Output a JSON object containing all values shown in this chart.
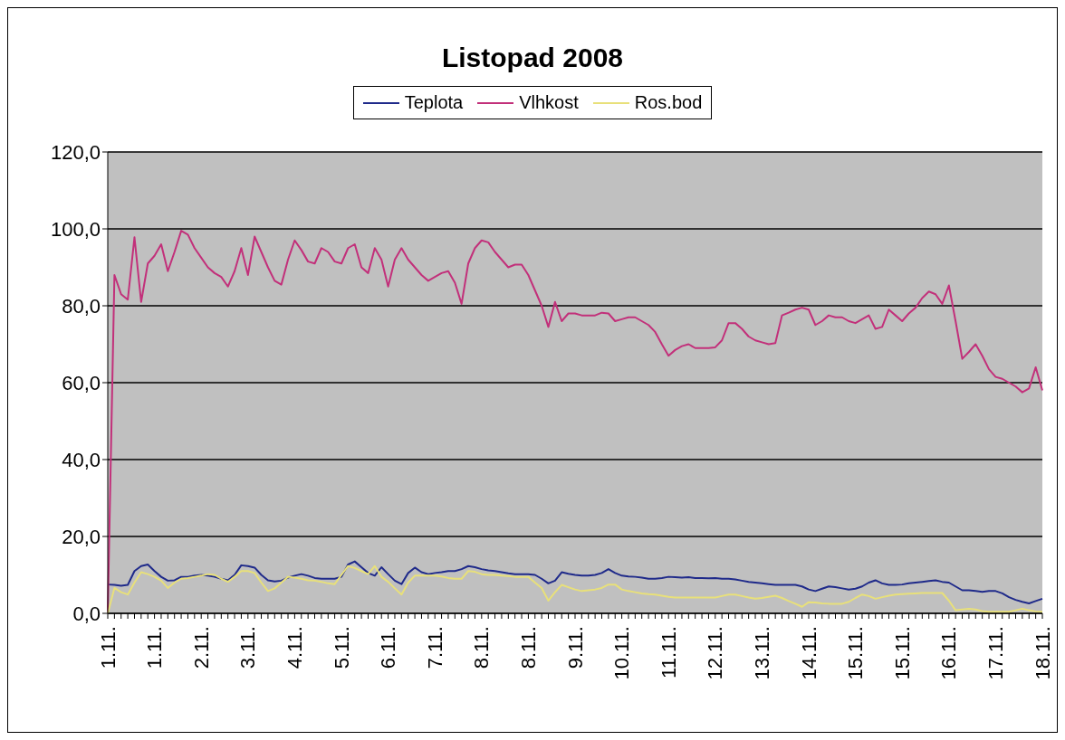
{
  "chart_data": {
    "type": "line",
    "title": "Listopad 2008",
    "categories": [
      "1.11.",
      null,
      null,
      null,
      null,
      null,
      null,
      "1.11.",
      null,
      null,
      null,
      null,
      null,
      null,
      "2.11.",
      null,
      null,
      null,
      null,
      null,
      null,
      "3.11.",
      null,
      null,
      null,
      null,
      null,
      null,
      "4.11.",
      null,
      null,
      null,
      null,
      null,
      null,
      "5.11.",
      null,
      null,
      null,
      null,
      null,
      null,
      "6.11.",
      null,
      null,
      null,
      null,
      null,
      null,
      "7.11.",
      null,
      null,
      null,
      null,
      null,
      null,
      "8.11.",
      null,
      null,
      null,
      null,
      null,
      null,
      "8.11.",
      null,
      null,
      null,
      null,
      null,
      null,
      "9.11.",
      null,
      null,
      null,
      null,
      null,
      null,
      "10.11.",
      null,
      null,
      null,
      null,
      null,
      null,
      "11.11.",
      null,
      null,
      null,
      null,
      null,
      null,
      "12.11.",
      null,
      null,
      null,
      null,
      null,
      null,
      "13.11.",
      null,
      null,
      null,
      null,
      null,
      null,
      "14.11.",
      null,
      null,
      null,
      null,
      null,
      null,
      "15.11.",
      null,
      null,
      null,
      null,
      null,
      null,
      "15.11.",
      null,
      null,
      null,
      null,
      null,
      null,
      "16.11.",
      null,
      null,
      null,
      null,
      null,
      null,
      "17.11.",
      null,
      null,
      null,
      null,
      null,
      null,
      "18.11."
    ],
    "series": [
      {
        "name": "Teplota",
        "color": "#1f2a8a",
        "values": [
          7.5,
          7.4,
          7.2,
          7.4,
          11,
          12.3,
          12.7,
          11,
          9.5,
          8.5,
          8.6,
          9.5,
          9.5,
          9.8,
          10,
          9.8,
          9.5,
          9,
          8.6,
          10,
          12.5,
          12.3,
          11.9,
          10,
          8.6,
          8.3,
          8.5,
          9.3,
          9.8,
          10.2,
          9.8,
          9.2,
          9,
          9,
          9,
          9.5,
          12.7,
          13.5,
          12,
          10.5,
          9.8,
          12,
          10.2,
          8.5,
          7.6,
          10.5,
          11.9,
          10.7,
          10.2,
          10.5,
          10.7,
          11,
          11,
          11.5,
          12.3,
          12,
          11.5,
          11.2,
          11,
          10.7,
          10.4,
          10.2,
          10.2,
          10.2,
          10,
          9,
          7.8,
          8.5,
          10.7,
          10.3,
          10,
          9.8,
          9.8,
          10,
          10.5,
          11.5,
          10.5,
          9.8,
          9.6,
          9.5,
          9.3,
          9,
          9,
          9.2,
          9.5,
          9.4,
          9.3,
          9.4,
          9.2,
          9.2,
          9.1,
          9.2,
          9,
          9,
          8.8,
          8.5,
          8.2,
          8,
          7.8,
          7.6,
          7.4,
          7.4,
          7.4,
          7.4,
          7,
          6.2,
          5.8,
          6.4,
          7,
          6.8,
          6.5,
          6.2,
          6.4,
          7,
          8,
          8.6,
          7.8,
          7.4,
          7.4,
          7.5,
          7.8,
          8,
          8.2,
          8.4,
          8.6,
          8.2,
          8,
          7,
          6,
          6,
          5.8,
          5.6,
          5.8,
          5.8,
          5.2,
          4.2,
          3.5,
          3,
          2.6,
          3.2,
          3.8
        ]
      },
      {
        "name": "Vlhkost",
        "color": "#c2307a",
        "values": [
          0,
          88,
          83,
          81.6,
          97.8,
          81,
          91,
          93,
          96,
          89,
          94,
          99.5,
          98.5,
          95,
          92.5,
          90,
          88.5,
          87.5,
          85,
          89,
          95,
          88,
          98,
          94,
          90,
          86.5,
          85.5,
          92,
          97,
          94.5,
          91.5,
          91,
          95,
          94,
          91.5,
          91,
          95,
          96,
          90,
          88.5,
          95,
          92,
          85,
          92,
          95,
          92,
          90,
          88,
          86.5,
          87.5,
          88.5,
          89,
          86,
          80.5,
          91,
          95,
          97,
          96.5,
          94,
          92,
          90,
          90.7,
          90.7,
          88,
          84,
          80,
          74.5,
          81,
          76,
          78,
          78,
          77.5,
          77.5,
          77.5,
          78.2,
          78,
          76,
          76.5,
          77,
          77,
          76,
          75,
          73.2,
          70,
          67,
          68.5,
          69.5,
          70,
          69,
          69,
          69,
          69.2,
          71,
          75.5,
          75.5,
          74,
          72,
          71,
          70.5,
          70,
          70.3,
          77.5,
          78.2,
          79,
          79.5,
          79,
          75,
          76,
          77.5,
          77,
          77,
          76,
          75.5,
          76.5,
          77.5,
          74,
          74.5,
          79,
          77.5,
          76,
          78,
          79.5,
          82,
          83.7,
          83,
          80.5,
          85.3,
          76,
          66.2,
          68,
          70,
          67,
          63.5,
          61.5,
          61,
          60,
          59,
          57.5,
          58.5,
          64,
          58
        ]
      },
      {
        "name": "Ros.bod",
        "color": "#e8e07a",
        "values": [
          0,
          6.6,
          5.5,
          4.9,
          8,
          10.7,
          10.2,
          9.5,
          8.5,
          6.6,
          8,
          9,
          9.2,
          9.5,
          9.8,
          10.2,
          10,
          9,
          8.2,
          9.5,
          11,
          11,
          10.5,
          8,
          5.8,
          6.5,
          8,
          9.5,
          9.3,
          9,
          8.6,
          8.5,
          8.2,
          7.8,
          7.6,
          10,
          12.3,
          11.8,
          11,
          10.2,
          12.3,
          9.5,
          8.2,
          6.5,
          4.9,
          8,
          9.8,
          9.8,
          9.8,
          9.8,
          9.6,
          9.2,
          9,
          9,
          11,
          10.8,
          10.2,
          10,
          10,
          9.8,
          9.7,
          9.5,
          9.5,
          9.5,
          8,
          6.6,
          3.3,
          5.5,
          7.4,
          6.8,
          6.2,
          5.8,
          6,
          6.2,
          6.6,
          7.5,
          7.5,
          6.2,
          5.8,
          5.5,
          5.2,
          5,
          4.9,
          4.6,
          4.3,
          4.1,
          4.1,
          4.1,
          4.1,
          4.1,
          4.1,
          4.1,
          4.5,
          4.9,
          4.9,
          4.5,
          4.1,
          3.8,
          4,
          4.3,
          4.6,
          4,
          3.2,
          2.5,
          1.7,
          2.9,
          2.8,
          2.6,
          2.5,
          2.5,
          2.5,
          3,
          4,
          4.9,
          4.5,
          3.8,
          4.2,
          4.6,
          4.9,
          5,
          5.1,
          5.2,
          5.3,
          5.3,
          5.3,
          5.3,
          3.3,
          0.8,
          1,
          1.2,
          1,
          0.6,
          0.4,
          0.4,
          0.4,
          0.4,
          0.8,
          1.2,
          0.8,
          0.5,
          0.4
        ]
      }
    ],
    "ylim": [
      0,
      120
    ],
    "yticks": [
      {
        "value": 0,
        "label": "0,0"
      },
      {
        "value": 20,
        "label": "20,0"
      },
      {
        "value": 40,
        "label": "40,0"
      },
      {
        "value": 60,
        "label": "60,0"
      },
      {
        "value": 80,
        "label": "80,0"
      },
      {
        "value": 100,
        "label": "100,0"
      },
      {
        "value": 120,
        "label": "120,0"
      }
    ],
    "grid": "y",
    "legend": "top"
  }
}
